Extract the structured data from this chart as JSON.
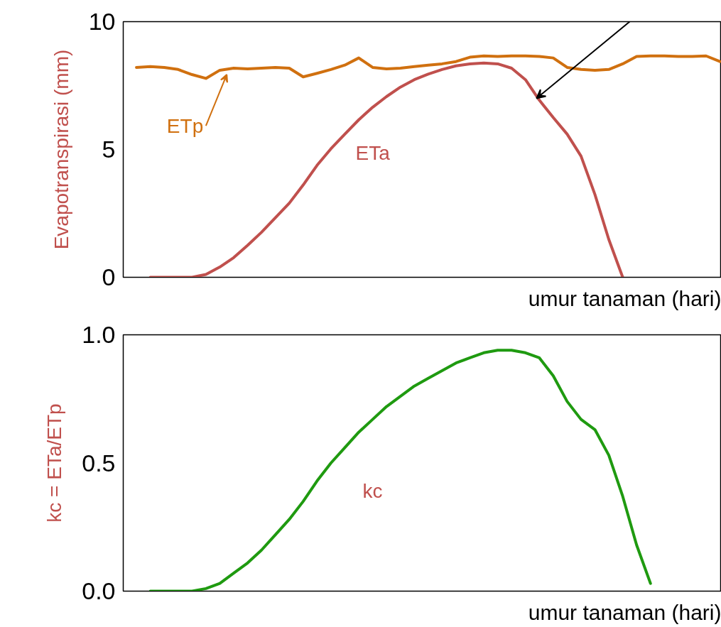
{
  "chart_data": [
    {
      "type": "line",
      "ylabel": "Evapotranspirasi (mm)",
      "xlabel": "umur tanaman (hari)",
      "categories": [
        null,
        null,
        null,
        null,
        null,
        null,
        null,
        null,
        null,
        null,
        null,
        null,
        null,
        null,
        null,
        null,
        null,
        null,
        null,
        null,
        null,
        null,
        null,
        null,
        null,
        null,
        null,
        null,
        null,
        null,
        null,
        null,
        null,
        null,
        null,
        null,
        null,
        null,
        null,
        null,
        null,
        null,
        null
      ],
      "ylim": [
        0,
        10
      ],
      "yticks": [
        0,
        5,
        10
      ],
      "tick_labels": "y",
      "grid": false,
      "marker": "none",
      "line_style": "solid",
      "series": [
        {
          "name": "ETp",
          "color": "#d0700f",
          "values": [
            8.21,
            8.24,
            8.21,
            8.13,
            7.93,
            7.78,
            8.1,
            8.18,
            8.15,
            8.18,
            8.21,
            8.18,
            7.84,
            7.98,
            8.13,
            8.3,
            8.58,
            8.21,
            8.15,
            8.18,
            8.24,
            8.3,
            8.35,
            8.44,
            8.61,
            8.66,
            8.64,
            8.66,
            8.66,
            8.64,
            8.58,
            8.21,
            8.13,
            8.1,
            8.13,
            8.35,
            8.64,
            8.66,
            8.66,
            8.64,
            8.64,
            8.66,
            8.44
          ]
        },
        {
          "name": "ETa",
          "color": "#c0504d",
          "values": [
            null,
            0.0,
            0.0,
            0.0,
            0.0,
            0.11,
            0.4,
            0.77,
            1.25,
            1.76,
            2.33,
            2.9,
            3.61,
            4.38,
            5.03,
            5.6,
            6.16,
            6.65,
            7.07,
            7.44,
            7.73,
            7.95,
            8.13,
            8.27,
            8.35,
            8.38,
            8.35,
            8.18,
            7.73,
            6.93,
            6.25,
            5.6,
            4.74,
            3.24,
            1.48,
            0.0,
            null,
            null,
            null,
            null,
            null,
            null,
            null
          ]
        }
      ]
    },
    {
      "type": "line",
      "ylabel": "kc = ETa/ETp",
      "xlabel": "umur tanaman (hari)",
      "categories": [
        null,
        null,
        null,
        null,
        null,
        null,
        null,
        null,
        null,
        null,
        null,
        null,
        null,
        null,
        null,
        null,
        null,
        null,
        null,
        null,
        null,
        null,
        null,
        null,
        null,
        null,
        null,
        null,
        null,
        null,
        null,
        null,
        null,
        null,
        null,
        null,
        null,
        null,
        null,
        null,
        null,
        null,
        null
      ],
      "ylim": [
        0,
        1
      ],
      "yticks": [
        {
          "value": 0,
          "label": "0.0"
        },
        {
          "value": 0.5,
          "label": "0.5"
        },
        {
          "value": 1,
          "label": "1.0"
        }
      ],
      "tick_labels": "y",
      "grid": false,
      "marker": "none",
      "line_style": "solid",
      "series": [
        {
          "name": "kc",
          "color": "#1f9a10",
          "values": [
            null,
            0.0,
            0.0,
            0.0,
            0.0,
            0.01,
            0.03,
            0.07,
            0.11,
            0.16,
            0.22,
            0.28,
            0.35,
            0.43,
            0.5,
            0.56,
            0.62,
            0.67,
            0.72,
            0.76,
            0.8,
            0.83,
            0.86,
            0.89,
            0.91,
            0.93,
            0.94,
            0.94,
            0.93,
            0.91,
            0.84,
            0.74,
            0.67,
            0.63,
            0.53,
            0.37,
            0.18,
            0.03,
            null,
            null,
            null,
            null,
            null
          ]
        }
      ]
    }
  ]
}
